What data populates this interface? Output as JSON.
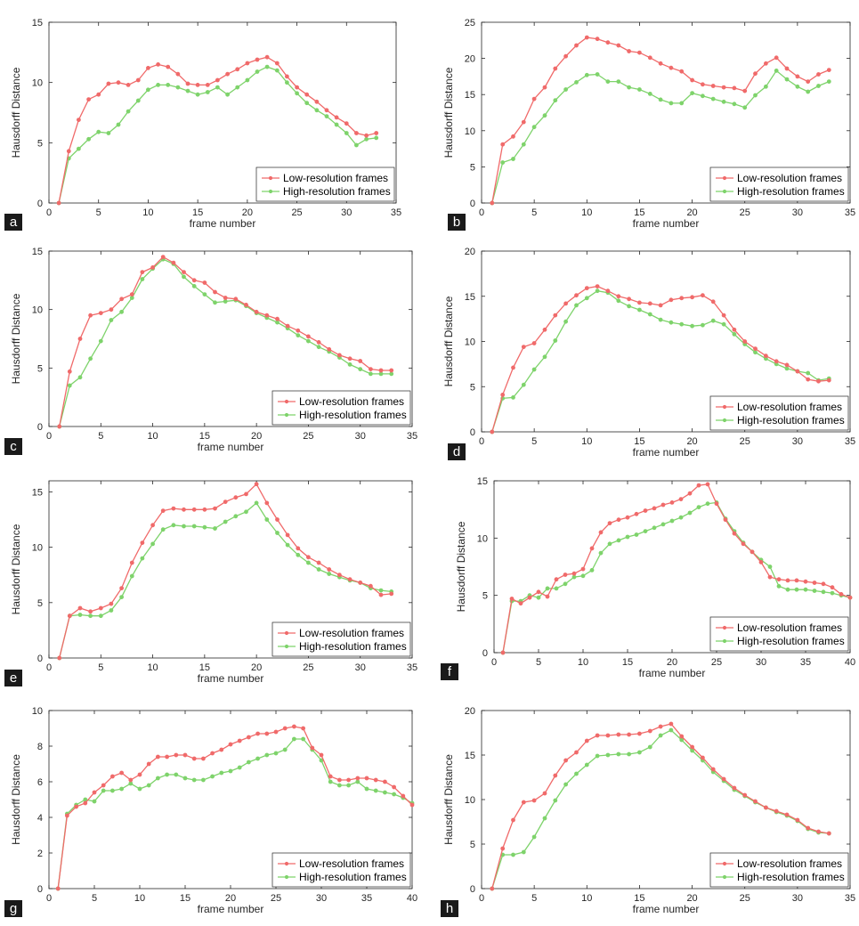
{
  "colors": {
    "low": "#f06a6a",
    "high": "#7ed36b",
    "axis": "#262626"
  },
  "chart_data": [
    {
      "panel": "a",
      "type": "line",
      "xlabel": "frame number",
      "ylabel": "Hausdorff Distance",
      "xlim": [
        0,
        35
      ],
      "ylim": [
        0,
        15
      ],
      "xticks": [
        0,
        5,
        10,
        15,
        20,
        25,
        30,
        35
      ],
      "yticks": [
        0,
        5,
        10,
        15
      ],
      "legend_position": "bottom-right",
      "grid": false,
      "series": [
        {
          "name": "Low-resolution frames",
          "x_start": 1,
          "values": [
            0,
            4.3,
            6.9,
            8.6,
            9.0,
            9.9,
            10.0,
            9.8,
            10.2,
            11.2,
            11.5,
            11.3,
            10.7,
            9.9,
            9.8,
            9.8,
            10.2,
            10.7,
            11.1,
            11.6,
            11.9,
            12.1,
            11.6,
            10.5,
            9.6,
            9.0,
            8.4,
            7.7,
            7.1,
            6.6,
            5.8,
            5.6,
            5.8
          ]
        },
        {
          "name": "High-resolution frames",
          "x_start": 1,
          "values": [
            0,
            3.7,
            4.5,
            5.3,
            5.9,
            5.8,
            6.5,
            7.6,
            8.5,
            9.4,
            9.8,
            9.8,
            9.6,
            9.3,
            9.0,
            9.2,
            9.6,
            9.0,
            9.6,
            10.2,
            10.9,
            11.3,
            11.0,
            10.0,
            9.1,
            8.3,
            7.7,
            7.2,
            6.5,
            5.8,
            4.8,
            5.3,
            5.4
          ]
        }
      ]
    },
    {
      "panel": "b",
      "type": "line",
      "xlabel": "frame number",
      "ylabel": "Hausdorff Distance",
      "xlim": [
        0,
        35
      ],
      "ylim": [
        0,
        25
      ],
      "xticks": [
        0,
        5,
        10,
        15,
        20,
        25,
        30,
        35
      ],
      "yticks": [
        0,
        5,
        10,
        15,
        20,
        25
      ],
      "legend_position": "bottom-right",
      "grid": false,
      "series": [
        {
          "name": "Low-resolution frames",
          "x_start": 1,
          "values": [
            0,
            8.1,
            9.2,
            11.2,
            14.4,
            16.0,
            18.6,
            20.3,
            21.8,
            22.9,
            22.7,
            22.2,
            21.8,
            21.0,
            20.8,
            20.1,
            19.3,
            18.7,
            18.2,
            17.0,
            16.4,
            16.2,
            16.0,
            15.9,
            15.5,
            17.9,
            19.3,
            20.1,
            18.6,
            17.5,
            16.8,
            17.8,
            18.4
          ]
        },
        {
          "name": "High-resolution frames",
          "x_start": 1,
          "values": [
            0,
            5.6,
            6.1,
            8.1,
            10.5,
            12.1,
            14.2,
            15.7,
            16.7,
            17.7,
            17.8,
            16.8,
            16.8,
            16.0,
            15.7,
            15.1,
            14.3,
            13.8,
            13.8,
            15.2,
            14.8,
            14.4,
            14.0,
            13.7,
            13.2,
            14.9,
            16.1,
            18.3,
            17.1,
            16.1,
            15.4,
            16.2,
            16.8
          ]
        }
      ]
    },
    {
      "panel": "c",
      "type": "line",
      "xlabel": "frame number",
      "ylabel": "Hausdorff Distance",
      "xlim": [
        0,
        35
      ],
      "ylim": [
        0,
        15
      ],
      "xticks": [
        0,
        5,
        10,
        15,
        20,
        25,
        30,
        35
      ],
      "yticks": [
        0,
        5,
        10,
        15
      ],
      "legend_position": "bottom-right",
      "grid": false,
      "series": [
        {
          "name": "Low-resolution frames",
          "x_start": 1,
          "values": [
            0,
            4.7,
            7.5,
            9.5,
            9.7,
            10.0,
            10.9,
            11.3,
            13.2,
            13.6,
            14.5,
            14.0,
            13.2,
            12.5,
            12.3,
            11.5,
            11.0,
            10.9,
            10.4,
            9.8,
            9.5,
            9.2,
            8.6,
            8.2,
            7.7,
            7.2,
            6.6,
            6.1,
            5.8,
            5.6,
            4.9,
            4.8,
            4.8
          ]
        },
        {
          "name": "High-resolution frames",
          "x_start": 1,
          "values": [
            0,
            3.5,
            4.2,
            5.8,
            7.3,
            9.1,
            9.8,
            11.0,
            12.6,
            13.5,
            14.3,
            13.9,
            12.8,
            12.0,
            11.3,
            10.6,
            10.7,
            10.8,
            10.3,
            9.7,
            9.3,
            8.9,
            8.4,
            7.8,
            7.3,
            6.8,
            6.4,
            5.9,
            5.3,
            4.9,
            4.5,
            4.5,
            4.5
          ]
        }
      ]
    },
    {
      "panel": "d",
      "type": "line",
      "xlabel": "frame number",
      "ylabel": "Hausdorff Distance",
      "xlim": [
        0,
        35
      ],
      "ylim": [
        0,
        20
      ],
      "xticks": [
        0,
        5,
        10,
        15,
        20,
        25,
        30,
        35
      ],
      "yticks": [
        0,
        5,
        10,
        15,
        20
      ],
      "legend_position": "bottom-right",
      "grid": false,
      "series": [
        {
          "name": "Low-resolution frames",
          "x_start": 1,
          "values": [
            0,
            4.1,
            7.1,
            9.4,
            9.8,
            11.3,
            12.9,
            14.2,
            15.1,
            15.9,
            16.1,
            15.6,
            15.0,
            14.7,
            14.3,
            14.2,
            14.0,
            14.6,
            14.8,
            14.9,
            15.1,
            14.4,
            12.9,
            11.3,
            10.0,
            9.2,
            8.4,
            7.8,
            7.4,
            6.7,
            5.8,
            5.6,
            5.7
          ]
        },
        {
          "name": "High-resolution frames",
          "x_start": 1,
          "values": [
            0,
            3.7,
            3.8,
            5.2,
            6.9,
            8.3,
            10.1,
            12.2,
            14.0,
            14.8,
            15.6,
            15.4,
            14.5,
            13.9,
            13.5,
            13.0,
            12.4,
            12.1,
            11.9,
            11.7,
            11.8,
            12.3,
            11.9,
            10.8,
            9.7,
            8.8,
            8.1,
            7.5,
            7.0,
            6.7,
            6.5,
            5.7,
            5.9
          ]
        }
      ]
    },
    {
      "panel": "e",
      "type": "line",
      "xlabel": "frame number",
      "ylabel": "Hausdorff Distance",
      "xlim": [
        0,
        35
      ],
      "ylim": [
        0,
        16
      ],
      "xticks": [
        0,
        5,
        10,
        15,
        20,
        25,
        30,
        35
      ],
      "yticks": [
        0,
        5,
        10,
        15
      ],
      "legend_position": "bottom-right",
      "grid": false,
      "series": [
        {
          "name": "Low-resolution frames",
          "x_start": 1,
          "values": [
            0,
            3.8,
            4.5,
            4.2,
            4.5,
            4.9,
            6.3,
            8.6,
            10.4,
            12.0,
            13.3,
            13.5,
            13.4,
            13.4,
            13.4,
            13.5,
            14.1,
            14.5,
            14.8,
            15.7,
            14.0,
            12.5,
            11.1,
            9.9,
            9.1,
            8.6,
            8.0,
            7.5,
            7.1,
            6.8,
            6.5,
            5.7,
            5.8
          ]
        },
        {
          "name": "High-resolution frames",
          "x_start": 1,
          "values": [
            0,
            3.8,
            3.9,
            3.8,
            3.8,
            4.3,
            5.5,
            7.4,
            9.0,
            10.3,
            11.6,
            12.0,
            11.9,
            11.9,
            11.8,
            11.7,
            12.3,
            12.8,
            13.2,
            14.0,
            12.5,
            11.3,
            10.2,
            9.3,
            8.6,
            8.0,
            7.6,
            7.3,
            7.0,
            6.8,
            6.3,
            6.1,
            6.0
          ]
        }
      ]
    },
    {
      "panel": "f",
      "type": "line",
      "xlabel": "frame number",
      "ylabel": "Hausdorff Distance",
      "xlim": [
        0,
        40
      ],
      "ylim": [
        0,
        15
      ],
      "xticks": [
        0,
        5,
        10,
        15,
        20,
        25,
        30,
        35,
        40
      ],
      "yticks": [
        0,
        5,
        10,
        15
      ],
      "legend_position": "bottom-right",
      "grid": false,
      "series": [
        {
          "name": "Low-resolution frames",
          "x_start": 1,
          "values": [
            0,
            4.7,
            4.3,
            4.8,
            5.3,
            4.9,
            6.4,
            6.8,
            6.9,
            7.3,
            9.1,
            10.5,
            11.3,
            11.6,
            11.8,
            12.1,
            12.4,
            12.6,
            12.9,
            13.1,
            13.4,
            13.9,
            14.6,
            14.7,
            13.0,
            11.6,
            10.4,
            9.5,
            8.8,
            7.9,
            6.6,
            6.4,
            6.3,
            6.3,
            6.2,
            6.1,
            6.0,
            5.7,
            5.1,
            4.8
          ]
        },
        {
          "name": "High-resolution frames",
          "x_start": 1,
          "values": [
            0,
            4.5,
            4.5,
            5.0,
            4.8,
            5.6,
            5.6,
            6.0,
            6.6,
            6.7,
            7.2,
            8.7,
            9.5,
            9.8,
            10.1,
            10.3,
            10.6,
            10.9,
            11.2,
            11.5,
            11.8,
            12.2,
            12.7,
            13.0,
            13.1,
            11.7,
            10.6,
            9.6,
            8.8,
            8.1,
            7.5,
            5.8,
            5.5,
            5.5,
            5.5,
            5.4,
            5.3,
            5.2,
            5.0,
            4.8
          ]
        }
      ]
    },
    {
      "panel": "g",
      "type": "line",
      "xlabel": "frame number",
      "ylabel": "Hausdorff Distance",
      "xlim": [
        0,
        40
      ],
      "ylim": [
        0,
        10
      ],
      "xticks": [
        0,
        5,
        10,
        15,
        20,
        25,
        30,
        35,
        40
      ],
      "yticks": [
        0,
        2,
        4,
        6,
        8,
        10
      ],
      "legend_position": "bottom-right",
      "grid": false,
      "series": [
        {
          "name": "Low-resolution frames",
          "x_start": 1,
          "values": [
            0,
            4.1,
            4.6,
            4.8,
            5.4,
            5.8,
            6.3,
            6.5,
            6.1,
            6.4,
            7.0,
            7.4,
            7.4,
            7.5,
            7.5,
            7.3,
            7.3,
            7.6,
            7.8,
            8.1,
            8.3,
            8.5,
            8.7,
            8.7,
            8.8,
            9.0,
            9.1,
            9.0,
            7.9,
            7.5,
            6.3,
            6.1,
            6.1,
            6.2,
            6.2,
            6.1,
            6.0,
            5.7,
            5.2,
            4.7
          ]
        },
        {
          "name": "High-resolution frames",
          "x_start": 1,
          "values": [
            0,
            4.2,
            4.7,
            5.0,
            4.9,
            5.5,
            5.5,
            5.6,
            5.9,
            5.6,
            5.8,
            6.2,
            6.4,
            6.4,
            6.2,
            6.1,
            6.1,
            6.3,
            6.5,
            6.6,
            6.8,
            7.1,
            7.3,
            7.5,
            7.6,
            7.8,
            8.4,
            8.4,
            7.8,
            7.2,
            6.0,
            5.8,
            5.8,
            6.0,
            5.6,
            5.5,
            5.4,
            5.3,
            5.1,
            4.8
          ]
        }
      ]
    },
    {
      "panel": "h",
      "type": "line",
      "xlabel": "frame number",
      "ylabel": "Hausdorff Distance",
      "xlim": [
        0,
        35
      ],
      "ylim": [
        0,
        20
      ],
      "xticks": [
        0,
        5,
        10,
        15,
        20,
        25,
        30,
        35
      ],
      "yticks": [
        0,
        5,
        10,
        15,
        20
      ],
      "legend_position": "bottom-right",
      "grid": false,
      "series": [
        {
          "name": "Low-resolution frames",
          "x_start": 1,
          "values": [
            0,
            4.5,
            7.7,
            9.7,
            9.9,
            10.7,
            12.7,
            14.4,
            15.3,
            16.6,
            17.2,
            17.2,
            17.3,
            17.3,
            17.4,
            17.7,
            18.2,
            18.5,
            17.1,
            15.9,
            14.7,
            13.4,
            12.3,
            11.3,
            10.5,
            9.8,
            9.1,
            8.7,
            8.3,
            7.7,
            6.8,
            6.4,
            6.2
          ]
        },
        {
          "name": "High-resolution frames",
          "x_start": 1,
          "values": [
            0,
            3.8,
            3.8,
            4.1,
            5.8,
            7.9,
            9.9,
            11.7,
            12.9,
            13.9,
            14.9,
            15.0,
            15.1,
            15.1,
            15.3,
            15.9,
            17.2,
            17.8,
            16.7,
            15.5,
            14.4,
            13.1,
            12.1,
            11.1,
            10.4,
            9.7,
            9.1,
            8.6,
            8.2,
            7.6,
            6.7,
            6.3,
            6.2
          ]
        }
      ]
    }
  ]
}
